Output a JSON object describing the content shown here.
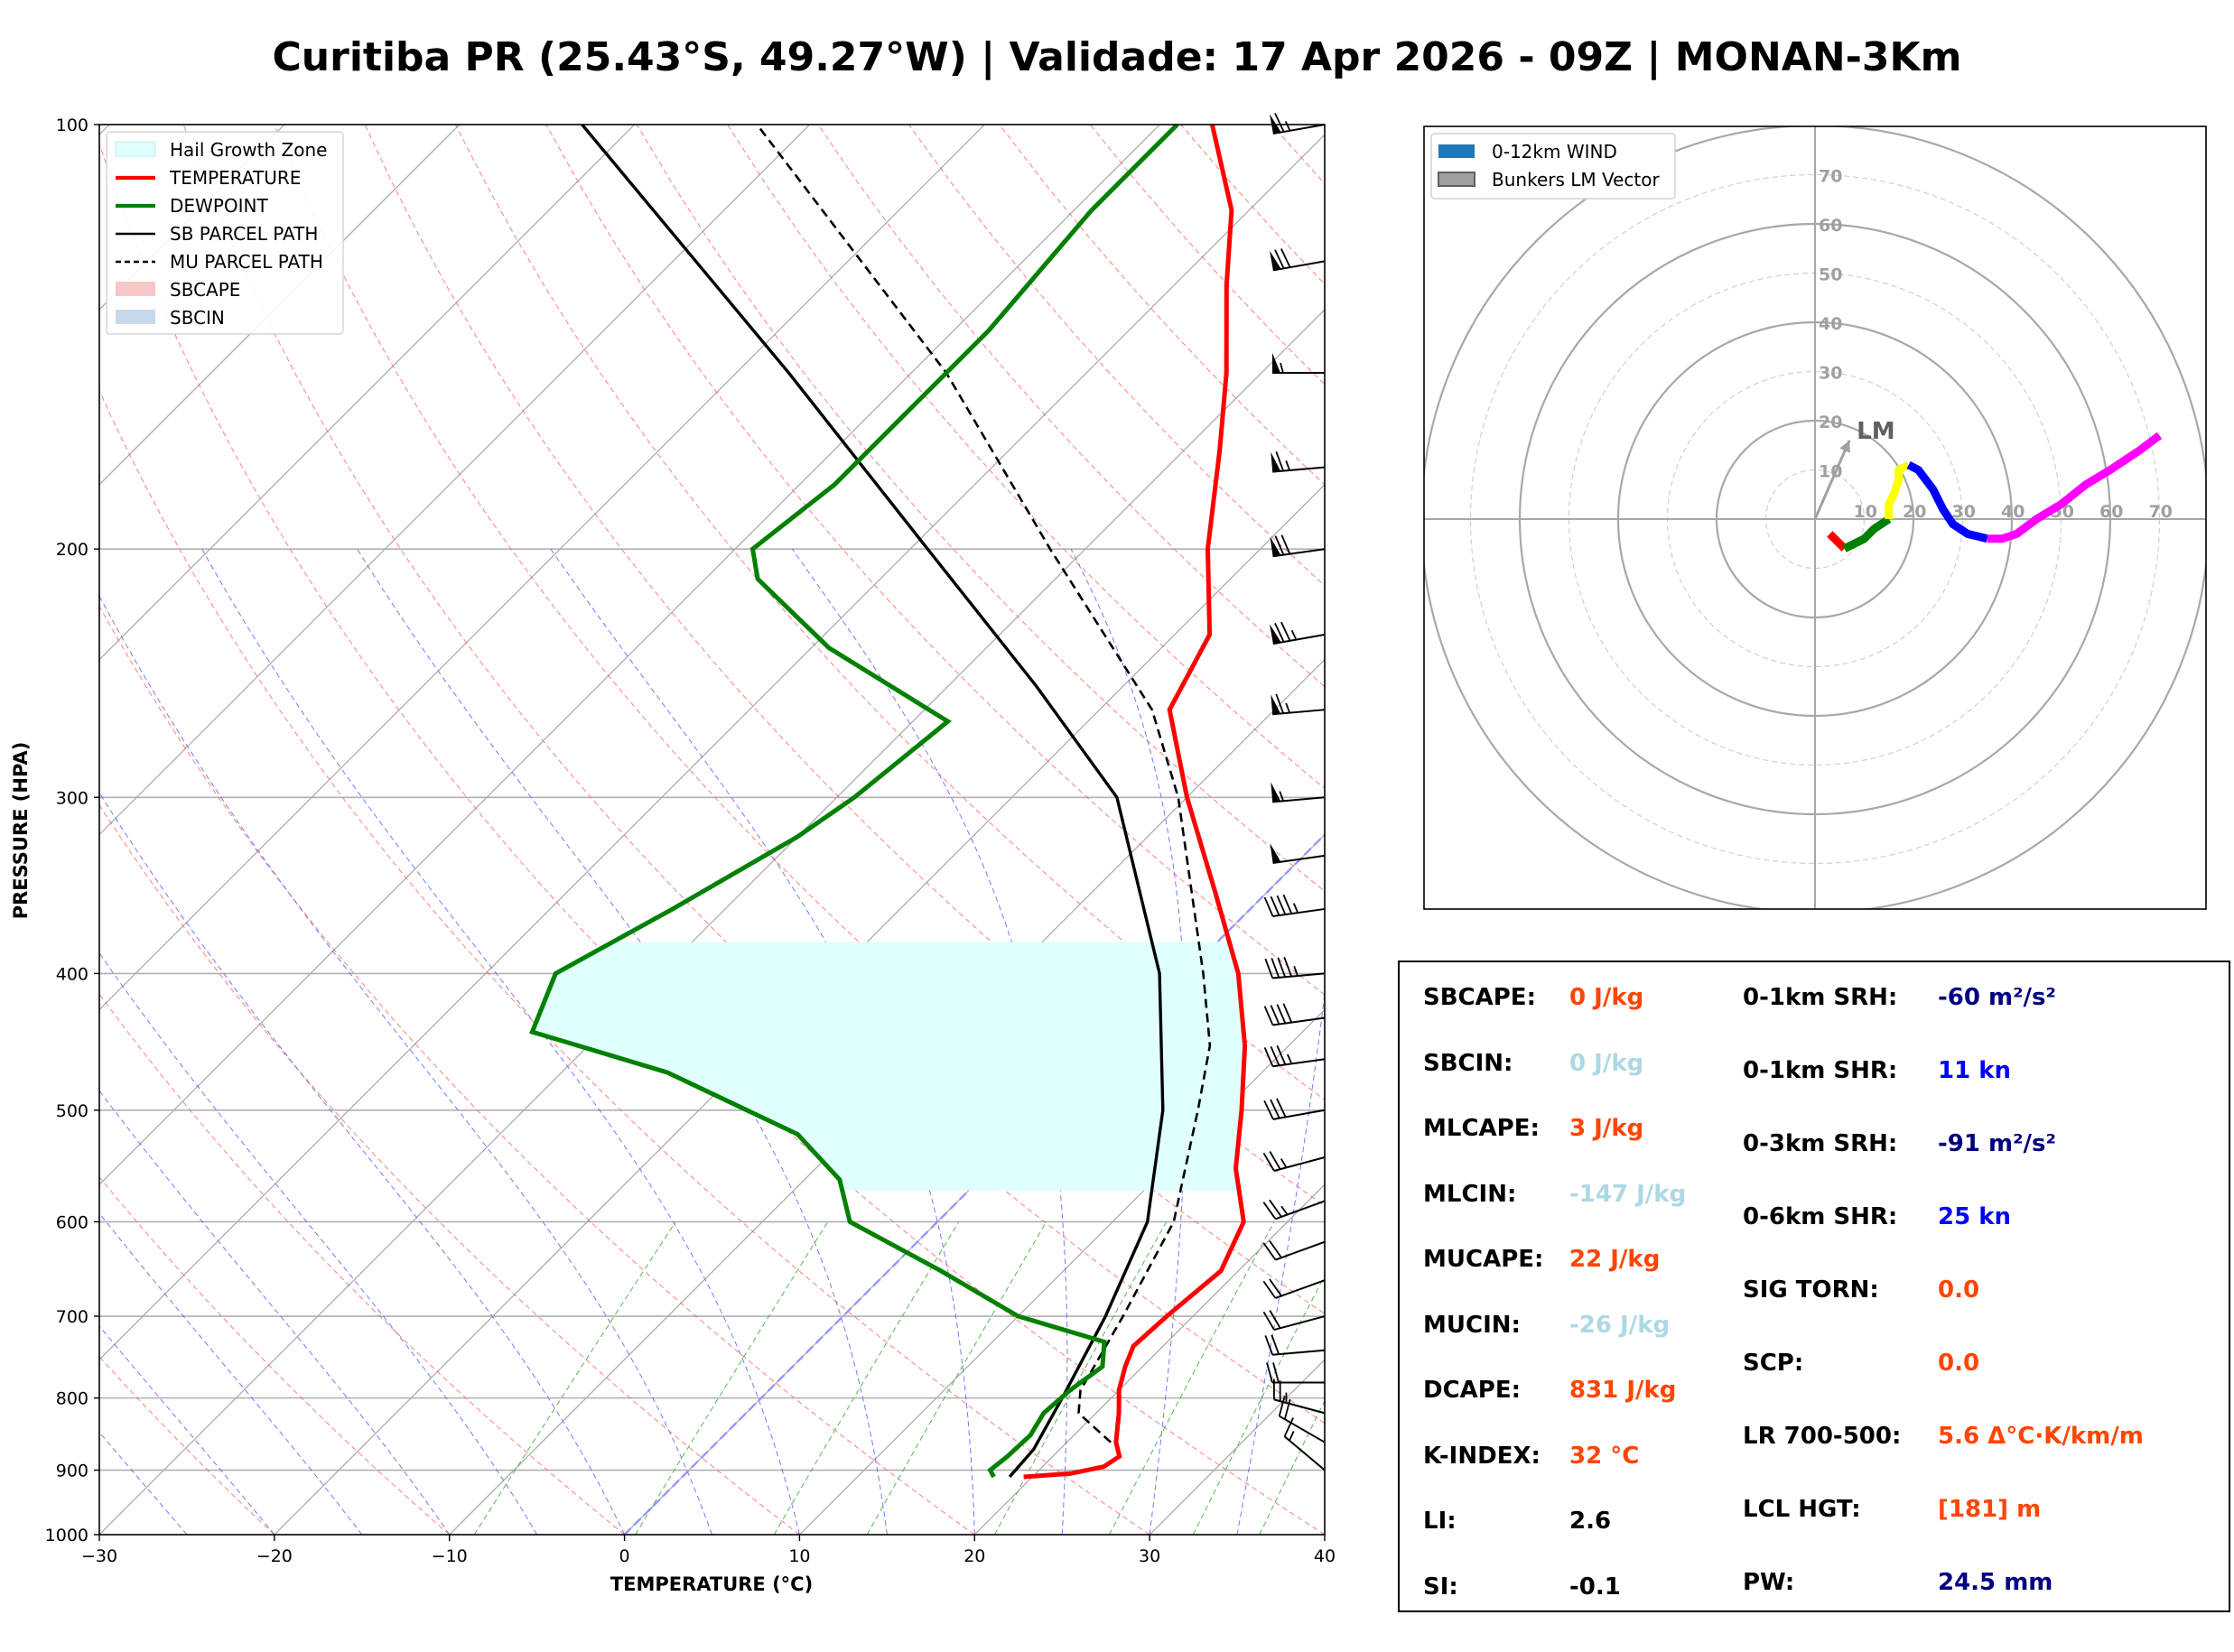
{
  "title": "Curitiba PR (25.43°S, 49.27°W) | Validade: 17 Apr 2026 - 09Z | MONAN-3Km",
  "chart_data": [
    {
      "type": "line",
      "name": "skew-t",
      "xlabel": "TEMPERATURE (°C)",
      "ylabel": "PRESSURE (HPA)",
      "xlim": [
        -30,
        40
      ],
      "ylim": [
        1000,
        100
      ],
      "x_ticks": [
        "−30",
        "−20",
        "−10",
        "0",
        "10",
        "20",
        "30",
        "40"
      ],
      "y_ticks": [
        "100",
        "200",
        "300",
        "400",
        "500",
        "600",
        "700",
        "800",
        "900",
        "1000"
      ],
      "legend": [
        {
          "label": "Hail Growth Zone",
          "color": "#e0ffff"
        },
        {
          "label": "TEMPERATURE",
          "color": "#ff0000"
        },
        {
          "label": "DEWPOINT",
          "color": "#008000"
        },
        {
          "label": "SB PARCEL PATH",
          "color": "#000000"
        },
        {
          "label": "MU PARCEL PATH",
          "color": "#000000"
        },
        {
          "label": "SBCAPE",
          "color": "#f7c6c6"
        },
        {
          "label": "SBCIN",
          "color": "#c6d9ea"
        }
      ],
      "temperature": [
        [
          910,
          19.5
        ],
        [
          905,
          22
        ],
        [
          895,
          23.5
        ],
        [
          880,
          23.8
        ],
        [
          860,
          22.8
        ],
        [
          820,
          21.3
        ],
        [
          790,
          20
        ],
        [
          760,
          19
        ],
        [
          735,
          18.3
        ],
        [
          700,
          18.5
        ],
        [
          650,
          19
        ],
        [
          600,
          17.5
        ],
        [
          550,
          14
        ],
        [
          500,
          11
        ],
        [
          450,
          7.5
        ],
        [
          400,
          3
        ],
        [
          350,
          -3
        ],
        [
          300,
          -10
        ],
        [
          260,
          -16
        ],
        [
          230,
          -18
        ],
        [
          200,
          -23
        ],
        [
          170,
          -28
        ],
        [
          150,
          -32
        ],
        [
          130,
          -37
        ],
        [
          115,
          -41
        ],
        [
          100,
          -47
        ]
      ],
      "dewpoint": [
        [
          910,
          17.8
        ],
        [
          900,
          17.2
        ],
        [
          880,
          17.4
        ],
        [
          850,
          17.5
        ],
        [
          820,
          17
        ],
        [
          790,
          17.2
        ],
        [
          760,
          17.7
        ],
        [
          730,
          16.4
        ],
        [
          700,
          10
        ],
        [
          650,
          3
        ],
        [
          600,
          -5
        ],
        [
          560,
          -8
        ],
        [
          520,
          -13
        ],
        [
          470,
          -24
        ],
        [
          440,
          -34
        ],
        [
          400,
          -36
        ],
        [
          360,
          -33
        ],
        [
          320,
          -30
        ],
        [
          300,
          -29
        ],
        [
          265,
          -28
        ],
        [
          235,
          -39
        ],
        [
          210,
          -47
        ],
        [
          200,
          -49
        ],
        [
          180,
          -48
        ],
        [
          160,
          -48
        ],
        [
          140,
          -48
        ],
        [
          115,
          -49
        ],
        [
          100,
          -49
        ]
      ],
      "sb_parcel": [
        [
          910,
          18.7
        ],
        [
          870,
          18.5
        ],
        [
          800,
          17.2
        ],
        [
          700,
          15
        ],
        [
          600,
          12
        ],
        [
          500,
          6.5
        ],
        [
          400,
          -1.5
        ],
        [
          300,
          -14
        ],
        [
          250,
          -25
        ],
        [
          200,
          -39
        ],
        [
          150,
          -57
        ],
        [
          100,
          -83
        ]
      ],
      "mu_parcel": [
        [
          860,
          22.5
        ],
        [
          820,
          19
        ],
        [
          790,
          17.8
        ],
        [
          700,
          16
        ],
        [
          600,
          13.5
        ],
        [
          500,
          8.5
        ],
        [
          450,
          5.5
        ],
        [
          400,
          1
        ],
        [
          300,
          -10.5
        ],
        [
          260,
          -17
        ],
        [
          200,
          -32
        ],
        [
          150,
          -48
        ],
        [
          100,
          -73
        ]
      ],
      "hail_growth_zone": {
        "p_bottom": 570,
        "p_top": 380
      },
      "wind_barbs": [
        {
          "p": 100,
          "dir": 260,
          "spd": 65
        },
        {
          "p": 125,
          "dir": 260,
          "spd": 70
        },
        {
          "p": 150,
          "dir": 270,
          "spd": 55
        },
        {
          "p": 175,
          "dir": 265,
          "spd": 65
        },
        {
          "p": 200,
          "dir": 262,
          "spd": 70
        },
        {
          "p": 230,
          "dir": 260,
          "spd": 75
        },
        {
          "p": 260,
          "dir": 265,
          "spd": 65
        },
        {
          "p": 300,
          "dir": 265,
          "spd": 55
        },
        {
          "p": 330,
          "dir": 262,
          "spd": 50
        },
        {
          "p": 360,
          "dir": 262,
          "spd": 45
        },
        {
          "p": 400,
          "dir": 265,
          "spd": 45
        },
        {
          "p": 430,
          "dir": 262,
          "spd": 40
        },
        {
          "p": 460,
          "dir": 262,
          "spd": 35
        },
        {
          "p": 500,
          "dir": 260,
          "spd": 30
        },
        {
          "p": 540,
          "dir": 255,
          "spd": 25
        },
        {
          "p": 580,
          "dir": 250,
          "spd": 25
        },
        {
          "p": 620,
          "dir": 250,
          "spd": 20
        },
        {
          "p": 660,
          "dir": 250,
          "spd": 20
        },
        {
          "p": 700,
          "dir": 255,
          "spd": 20
        },
        {
          "p": 740,
          "dir": 265,
          "spd": 20
        },
        {
          "p": 780,
          "dir": 270,
          "spd": 20
        },
        {
          "p": 820,
          "dir": 285,
          "spd": 25
        },
        {
          "p": 860,
          "dir": 300,
          "spd": 20
        },
        {
          "p": 900,
          "dir": 310,
          "spd": 15
        }
      ]
    },
    {
      "type": "hodograph",
      "name": "hodograph",
      "legend": [
        {
          "label": "0-12km WIND",
          "color": "#1f77b4"
        },
        {
          "label": "Bunkers LM Vector",
          "color": "#a0a0a0"
        }
      ],
      "ring_labels": [
        "10",
        "20",
        "30",
        "40",
        "50",
        "60",
        "70"
      ],
      "lm_label": "LM",
      "lm_vector": {
        "u": 7,
        "v": 16
      },
      "segments": [
        {
          "color": "#ff0000",
          "points": [
            [
              3,
              -3
            ],
            [
              5,
              -5
            ],
            [
              6,
              -6
            ]
          ]
        },
        {
          "color": "#008000",
          "points": [
            [
              6,
              -6
            ],
            [
              10,
              -4
            ],
            [
              12,
              -2
            ],
            [
              15,
              0
            ]
          ]
        },
        {
          "color": "#ffff00",
          "points": [
            [
              15,
              0
            ],
            [
              15,
              3
            ],
            [
              16,
              5
            ],
            [
              17,
              8
            ],
            [
              17,
              10
            ],
            [
              19,
              11
            ]
          ]
        },
        {
          "color": "#0000ff",
          "points": [
            [
              19,
              11
            ],
            [
              21,
              10
            ],
            [
              24,
              6
            ],
            [
              26,
              2
            ],
            [
              28,
              -1
            ],
            [
              31,
              -3
            ],
            [
              35,
              -4
            ]
          ]
        },
        {
          "color": "#ff00ff",
          "points": [
            [
              35,
              -4
            ],
            [
              38,
              -4
            ],
            [
              41,
              -3
            ],
            [
              45,
              0
            ],
            [
              50,
              3
            ],
            [
              55,
              7
            ],
            [
              60,
              10
            ],
            [
              66,
              14
            ],
            [
              70,
              17
            ]
          ]
        }
      ]
    }
  ],
  "parameters": {
    "left": [
      {
        "label": "SBCAPE:",
        "value": "0 J/kg",
        "color": "#ff4500"
      },
      {
        "label": "SBCIN:",
        "value": "0 J/kg",
        "color": "#add8e6"
      },
      {
        "label": "MLCAPE:",
        "value": "3 J/kg",
        "color": "#ff4500"
      },
      {
        "label": "MLCIN:",
        "value": "-147 J/kg",
        "color": "#add8e6"
      },
      {
        "label": "MUCAPE:",
        "value": "22 J/kg",
        "color": "#ff4500"
      },
      {
        "label": "MUCIN:",
        "value": "-26 J/kg",
        "color": "#add8e6"
      },
      {
        "label": "DCAPE:",
        "value": "831 J/kg",
        "color": "#ff4500"
      },
      {
        "label": "K-INDEX:",
        "value": "32 °C",
        "color": "#ff4500"
      },
      {
        "label": "LI:",
        "value": "2.6",
        "color": "#000000"
      },
      {
        "label": "SI:",
        "value": "-0.1",
        "color": "#000000"
      }
    ],
    "right": [
      {
        "label": "0-1km SRH:",
        "value": "-60 m²/s²",
        "color": "#000080"
      },
      {
        "label": "0-1km SHR:",
        "value": "11 kn",
        "color": "#0000ff"
      },
      {
        "label": "0-3km SRH:",
        "value": "-91 m²/s²",
        "color": "#000080"
      },
      {
        "label": "0-6km SHR:",
        "value": "25 kn",
        "color": "#0000ff"
      },
      {
        "label": "SIG TORN:",
        "value": "0.0",
        "color": "#ff4500"
      },
      {
        "label": "SCP:",
        "value": "0.0",
        "color": "#ff4500"
      },
      {
        "label": "LR 700-500:",
        "value": "5.6 Δ°C·K/km/m",
        "color": "#ff4500"
      },
      {
        "label": "LCL HGT:",
        "value": "[181] m",
        "color": "#ff4500"
      },
      {
        "label": "PW:",
        "value": "24.5 mm",
        "color": "#000080"
      }
    ]
  }
}
